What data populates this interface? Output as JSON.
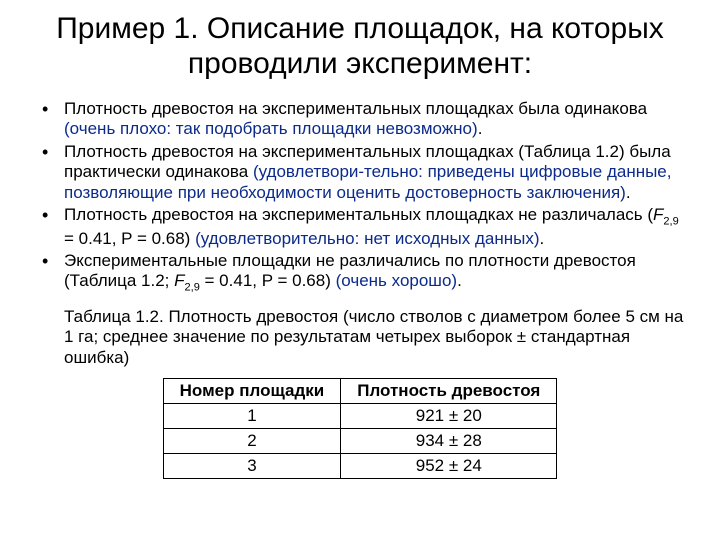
{
  "title": "Пример 1. Описание площадок, на которых проводили эксперимент:",
  "bullets": [
    {
      "black1": "Плотность древостоя на экспериментальных площадках была одинакова ",
      "blue": "(очень плохо: так подобрать площадки невозможно)",
      "black2": "."
    },
    {
      "black1": "Плотность древостоя на экспериментальных площадках (Таблица 1.2) была практически одинакова ",
      "blue": "(удовлетвори-тельно: приведены цифровые данные, позволяющие при необходимости оценить достоверность заключения)",
      "black2": "."
    },
    {
      "black1": "Плотность древостоя на экспериментальных площадках не различалась (",
      "stat_F": "F",
      "stat_sub": "2,9",
      "stat_rest": " = 0.41, P = 0.68) ",
      "blue": "(удовлетворительно: нет исходных данных)",
      "black2": "."
    },
    {
      "black1": "Экспериментальные площадки не различались по плотности древостоя (Таблица 1.2; ",
      "stat_F": "F",
      "stat_sub": "2,9",
      "stat_rest": " = 0.41, P = 0.68) ",
      "blue": "(очень хорошо)",
      "black2": "."
    }
  ],
  "caption": "Таблица 1.2. Плотность древостоя (число стволов с диаметром более 5 см на 1 га; среднее значение по результатам четырех выборок ± стандартная ошибка)",
  "table": {
    "columns": [
      "Номер площадки",
      "Плотность древостоя"
    ],
    "rows": [
      [
        "1",
        "921 ± 20"
      ],
      [
        "2",
        "934 ± 28"
      ],
      [
        "3",
        "952 ± 24"
      ]
    ],
    "border_color": "#000000",
    "text_color": "#000000",
    "header_fontweight": "bold"
  },
  "colors": {
    "blue": "#0b2a8a",
    "text": "#000000",
    "background": "#ffffff"
  },
  "fonts": {
    "title_size": 30,
    "body_size": 17,
    "sub_size": 11
  }
}
